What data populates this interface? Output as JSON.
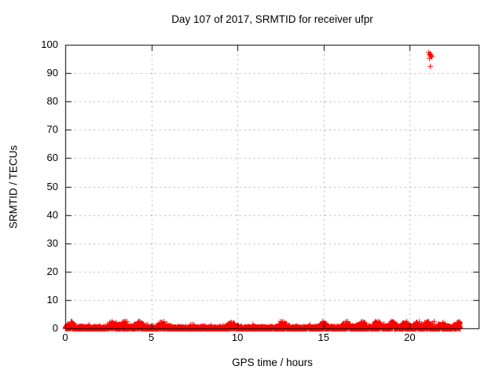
{
  "chart_data": {
    "type": "scatter",
    "title": "Day 107 of 2017, SRMTID for receiver ufpr",
    "xlabel": "GPS time / hours",
    "ylabel": "SRMTID / TECUs",
    "xlim": [
      0,
      24
    ],
    "ylim": [
      0,
      100
    ],
    "xticks": [
      0,
      5,
      10,
      15,
      20
    ],
    "yticks": [
      0,
      10,
      20,
      30,
      40,
      50,
      60,
      70,
      80,
      90,
      100
    ],
    "grid": "dashed gray major gridlines, mirrored inward ticks on all four sides",
    "legend_position": "none",
    "marker": "plus",
    "series_color": "#ff0000",
    "frame_color": "#000000",
    "grid_color": "#b0b0b0",
    "series": [
      {
        "name": "SRMTID",
        "description": "dense noise band of SRMTID values hugging 0 TECU across the whole day",
        "band": {
          "x_start": 0.0,
          "x_end": 22.9,
          "y_center": 0.0,
          "y_base_spread": 0.55,
          "y_max": 2.6,
          "n_points": 6500,
          "seed": 107,
          "thickness_bumps_hours": [
            0.3,
            2.7,
            3.4,
            4.3,
            5.6,
            9.6,
            12.6,
            15.0,
            16.3,
            17.2,
            18.1,
            19.0,
            19.7,
            20.4,
            21.0,
            21.9,
            22.8
          ]
        },
        "outlier_cluster": [
          {
            "x": 21.1,
            "y": 97.4
          },
          {
            "x": 21.18,
            "y": 97.0
          },
          {
            "x": 21.13,
            "y": 96.7
          },
          {
            "x": 21.22,
            "y": 96.5
          },
          {
            "x": 21.16,
            "y": 96.2
          },
          {
            "x": 21.25,
            "y": 95.9
          },
          {
            "x": 21.14,
            "y": 95.3
          },
          {
            "x": 21.15,
            "y": 92.5
          }
        ],
        "isolated_points": [
          {
            "x": 21.4,
            "y": 2.4
          }
        ]
      }
    ]
  }
}
